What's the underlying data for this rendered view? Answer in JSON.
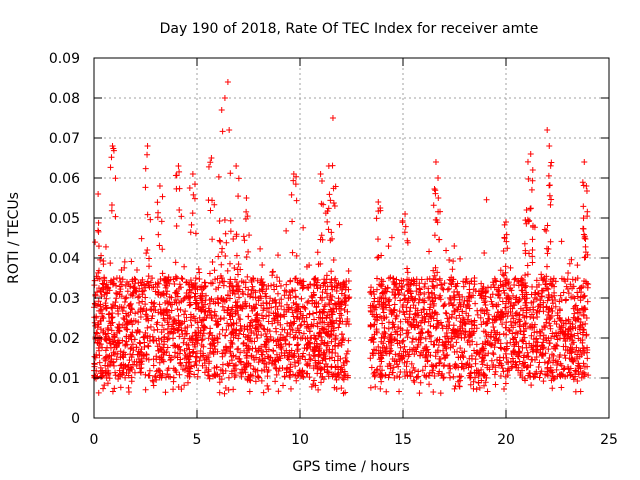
{
  "chart_data": {
    "type": "scatter",
    "title": "Day 190 of 2018, Rate Of TEC Index for receiver amte",
    "xlabel": "GPS time / hours",
    "ylabel": "ROTI / TECUs",
    "xlim": [
      0,
      25
    ],
    "ylim": [
      0,
      0.09
    ],
    "x_ticks": [
      "0",
      "5",
      "10",
      "15",
      "20",
      "25"
    ],
    "y_ticks": [
      "0",
      "0.01",
      "0.02",
      "0.03",
      "0.04",
      "0.05",
      "0.06",
      "0.07",
      "0.08",
      "0.09"
    ],
    "grid": true,
    "marker": "+",
    "series_color": "#ff0000",
    "density_profile": {
      "x_range": [
        0,
        24
      ],
      "gap_hours": [
        12.4,
        13.4
      ],
      "typical_band": [
        0.01,
        0.035
      ],
      "peak_outliers": [
        {
          "x": 0.2,
          "y": 0.056
        },
        {
          "x": 0.9,
          "y": 0.068
        },
        {
          "x": 2.6,
          "y": 0.068
        },
        {
          "x": 3.2,
          "y": 0.058
        },
        {
          "x": 4.1,
          "y": 0.063
        },
        {
          "x": 4.8,
          "y": 0.061
        },
        {
          "x": 5.7,
          "y": 0.065
        },
        {
          "x": 6.2,
          "y": 0.077
        },
        {
          "x": 6.5,
          "y": 0.084
        },
        {
          "x": 6.9,
          "y": 0.063
        },
        {
          "x": 7.4,
          "y": 0.055
        },
        {
          "x": 9.7,
          "y": 0.061
        },
        {
          "x": 11.0,
          "y": 0.061
        },
        {
          "x": 11.4,
          "y": 0.063
        },
        {
          "x": 11.6,
          "y": 0.075
        },
        {
          "x": 13.8,
          "y": 0.054
        },
        {
          "x": 15.1,
          "y": 0.051
        },
        {
          "x": 16.6,
          "y": 0.064
        },
        {
          "x": 16.7,
          "y": 0.06
        },
        {
          "x": 20.0,
          "y": 0.049
        },
        {
          "x": 21.0,
          "y": 0.052
        },
        {
          "x": 21.2,
          "y": 0.066
        },
        {
          "x": 21.3,
          "y": 0.062
        },
        {
          "x": 22.0,
          "y": 0.072
        },
        {
          "x": 22.1,
          "y": 0.068
        },
        {
          "x": 23.8,
          "y": 0.064
        },
        {
          "x": 23.9,
          "y": 0.058
        }
      ]
    }
  }
}
